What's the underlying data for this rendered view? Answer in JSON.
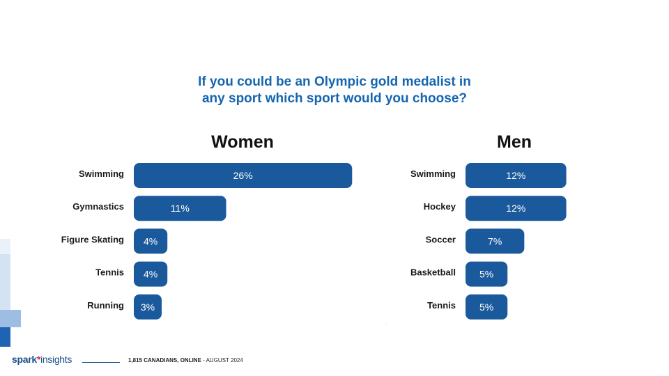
{
  "title_line1": "If you could be an Olympic gold medalist in",
  "title_line2": "any sport which sport would you choose?",
  "brand": {
    "name_part1": "spark",
    "star": "*",
    "name_part2": "insights"
  },
  "footer": {
    "sample": "1,815 CANADIANS, ONLINE",
    "sep": " - ",
    "date": "AUGUST 2024"
  },
  "colors": {
    "bar": "#1a5a9c",
    "title": "#1565b0",
    "brand": "#1a4f8c",
    "accent": "#d12b3a"
  },
  "chart_data": [
    {
      "type": "bar",
      "orientation": "horizontal",
      "title": "Women",
      "categories": [
        "Swimming",
        "Gymnastics",
        "Figure Skating",
        "Tennis",
        "Running"
      ],
      "values": [
        26,
        11,
        4,
        4,
        3
      ],
      "labels": [
        "26%",
        "11%",
        "4%",
        "4%",
        "3%"
      ]
    },
    {
      "type": "bar",
      "orientation": "horizontal",
      "title": "Men",
      "categories": [
        "Swimming",
        "Hockey",
        "Soccer",
        "Basketball",
        "Tennis"
      ],
      "values": [
        12,
        12,
        7,
        5,
        5
      ],
      "labels": [
        "12%",
        "12%",
        "7%",
        "5%",
        "5%"
      ]
    }
  ]
}
